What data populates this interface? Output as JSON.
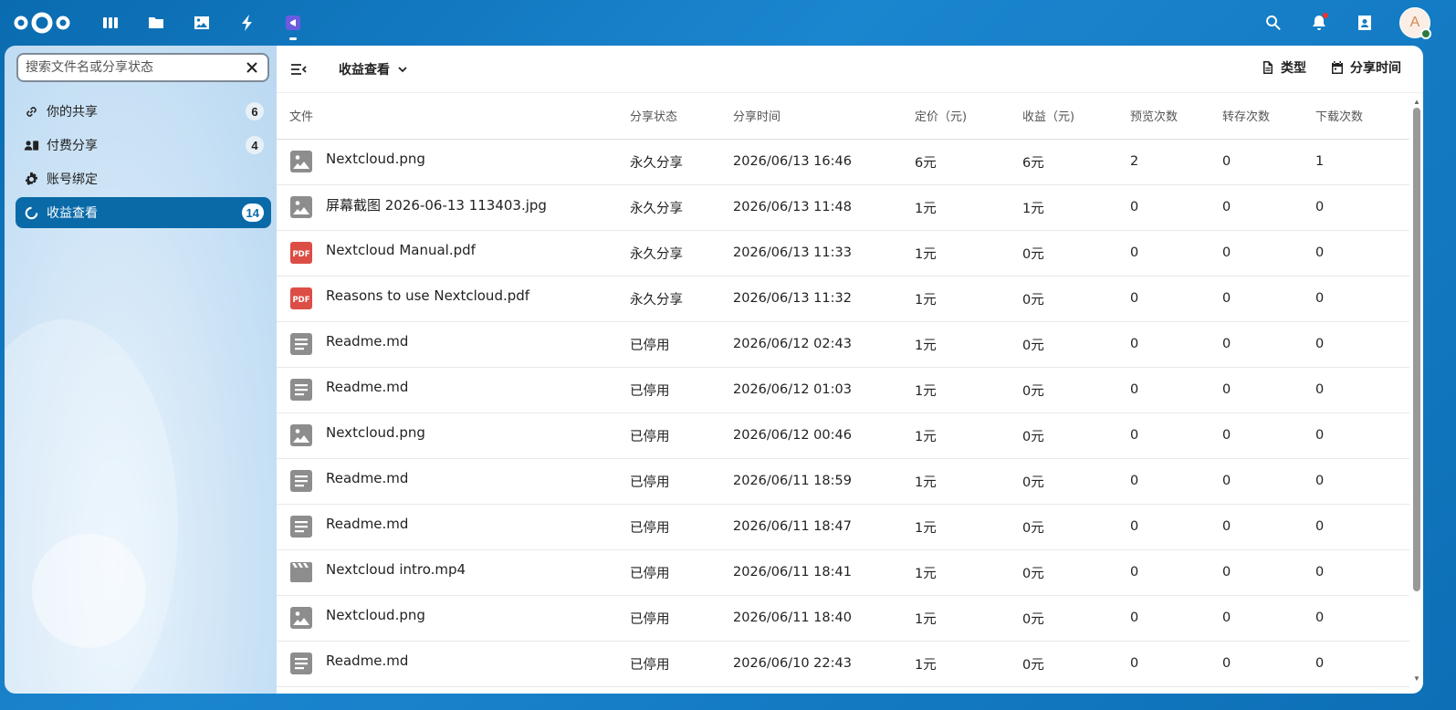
{
  "header": {
    "apps": [
      {
        "name": "dashboard-icon",
        "active": false
      },
      {
        "name": "files-icon",
        "active": false
      },
      {
        "name": "photos-icon",
        "active": false
      },
      {
        "name": "activity-icon",
        "active": false
      },
      {
        "name": "share-app-icon",
        "active": true
      }
    ],
    "avatar_letter": "A"
  },
  "sidebar": {
    "search_placeholder": "搜索文件名或分享状态",
    "items": [
      {
        "label": "你的共享",
        "count": "6",
        "icon": "link-icon",
        "active": false
      },
      {
        "label": "付费分享",
        "count": "4",
        "icon": "paid-share-icon",
        "active": false
      },
      {
        "label": "账号绑定",
        "count": "",
        "icon": "gear-icon",
        "active": false
      },
      {
        "label": "收益查看",
        "count": "14",
        "icon": "loading-circle-icon",
        "active": true
      }
    ]
  },
  "main": {
    "view_title": "收益查看",
    "filters": {
      "type_label": "类型",
      "time_label": "分享时间"
    },
    "columns": [
      "文件",
      "分享状态",
      "分享时间",
      "定价（元)",
      "收益（元)",
      "预览次数",
      "转存次数",
      "下载次数"
    ],
    "rows": [
      {
        "icon": "image",
        "file": "Nextcloud.png",
        "status": "永久分享",
        "time": "2026/06/13 16:46",
        "price": "6元",
        "income": "6元",
        "previews": "2",
        "saves": "0",
        "downloads": "1"
      },
      {
        "icon": "image",
        "file": "屏幕截图 2026-06-13 113403.jpg",
        "status": "永久分享",
        "time": "2026/06/13 11:48",
        "price": "1元",
        "income": "1元",
        "previews": "0",
        "saves": "0",
        "downloads": "0"
      },
      {
        "icon": "pdf",
        "file": "Nextcloud Manual.pdf",
        "status": "永久分享",
        "time": "2026/06/13 11:33",
        "price": "1元",
        "income": "0元",
        "previews": "0",
        "saves": "0",
        "downloads": "0"
      },
      {
        "icon": "pdf",
        "file": "Reasons to use Nextcloud.pdf",
        "status": "永久分享",
        "time": "2026/06/13 11:32",
        "price": "1元",
        "income": "0元",
        "previews": "0",
        "saves": "0",
        "downloads": "0"
      },
      {
        "icon": "text",
        "file": "Readme.md",
        "status": "已停用",
        "time": "2026/06/12 02:43",
        "price": "1元",
        "income": "0元",
        "previews": "0",
        "saves": "0",
        "downloads": "0"
      },
      {
        "icon": "text",
        "file": "Readme.md",
        "status": "已停用",
        "time": "2026/06/12 01:03",
        "price": "1元",
        "income": "0元",
        "previews": "0",
        "saves": "0",
        "downloads": "0"
      },
      {
        "icon": "image",
        "file": "Nextcloud.png",
        "status": "已停用",
        "time": "2026/06/12 00:46",
        "price": "1元",
        "income": "0元",
        "previews": "0",
        "saves": "0",
        "downloads": "0"
      },
      {
        "icon": "text",
        "file": "Readme.md",
        "status": "已停用",
        "time": "2026/06/11 18:59",
        "price": "1元",
        "income": "0元",
        "previews": "0",
        "saves": "0",
        "downloads": "0"
      },
      {
        "icon": "text",
        "file": "Readme.md",
        "status": "已停用",
        "time": "2026/06/11 18:47",
        "price": "1元",
        "income": "0元",
        "previews": "0",
        "saves": "0",
        "downloads": "0"
      },
      {
        "icon": "video",
        "file": "Nextcloud intro.mp4",
        "status": "已停用",
        "time": "2026/06/11 18:41",
        "price": "1元",
        "income": "0元",
        "previews": "0",
        "saves": "0",
        "downloads": "0"
      },
      {
        "icon": "image",
        "file": "Nextcloud.png",
        "status": "已停用",
        "time": "2026/06/11 18:40",
        "price": "1元",
        "income": "0元",
        "previews": "0",
        "saves": "0",
        "downloads": "0"
      },
      {
        "icon": "text",
        "file": "Readme.md",
        "status": "已停用",
        "time": "2026/06/10 22:43",
        "price": "1元",
        "income": "0元",
        "previews": "0",
        "saves": "0",
        "downloads": "0"
      }
    ]
  }
}
